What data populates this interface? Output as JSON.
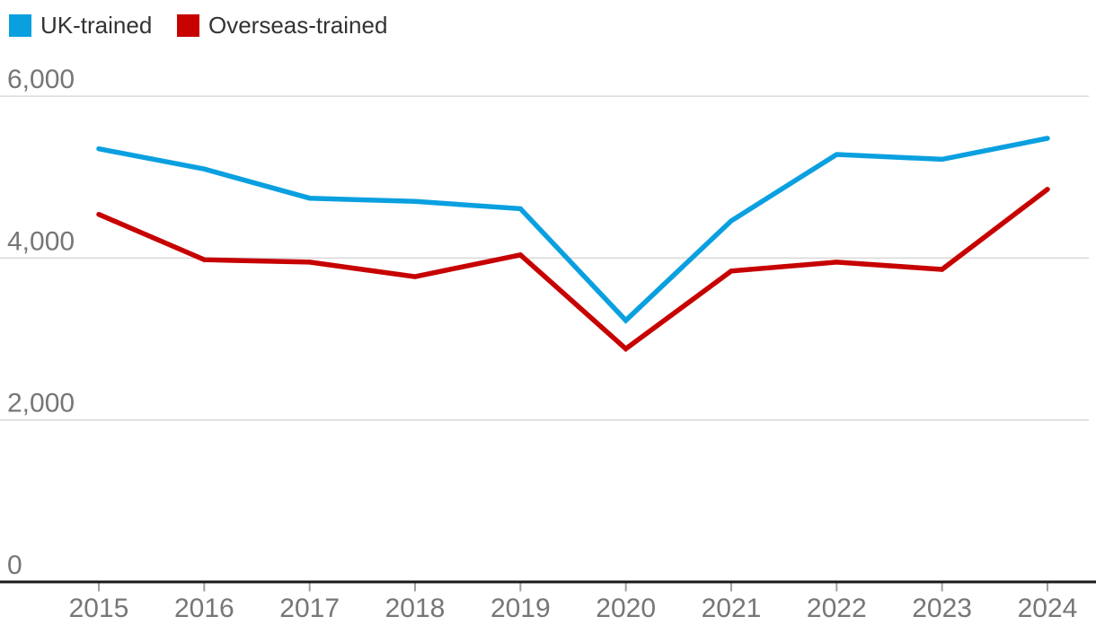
{
  "legend": {
    "items": [
      {
        "label": "UK-trained",
        "color": "#0aa0e0"
      },
      {
        "label": "Overseas-trained",
        "color": "#c70000"
      }
    ]
  },
  "colors": {
    "gridline": "#d9d9d9",
    "baseline_axis": "#1a1a1a",
    "tick_mark": "#a0a0a0",
    "axis_label": "#767676",
    "legend_text": "#333333",
    "background": "#ffffff"
  },
  "chart_data": {
    "type": "line",
    "title": "",
    "xlabel": "",
    "ylabel": "",
    "x": [
      2015,
      2016,
      2017,
      2018,
      2019,
      2020,
      2021,
      2022,
      2023,
      2024
    ],
    "x_tick_labels": [
      "2015",
      "2016",
      "2017",
      "2018",
      "2019",
      "2020",
      "2021",
      "2022",
      "2023",
      "2024"
    ],
    "series": [
      {
        "name": "UK-trained",
        "color": "#0aa0e0",
        "values": [
          5350,
          5100,
          4740,
          4700,
          4610,
          3230,
          4460,
          5280,
          5220,
          5480
        ]
      },
      {
        "name": "Overseas-trained",
        "color": "#c70000",
        "values": [
          4540,
          3980,
          3950,
          3770,
          4040,
          2880,
          3840,
          3950,
          3860,
          4850
        ]
      }
    ],
    "ylim": [
      0,
      6000
    ],
    "yticks": [
      {
        "value": 0,
        "label": "0"
      },
      {
        "value": 2000,
        "label": "2,000"
      },
      {
        "value": 4000,
        "label": "4,000"
      },
      {
        "value": 6000,
        "label": "6,000"
      }
    ],
    "grid": true,
    "legend_position": "top-left"
  }
}
